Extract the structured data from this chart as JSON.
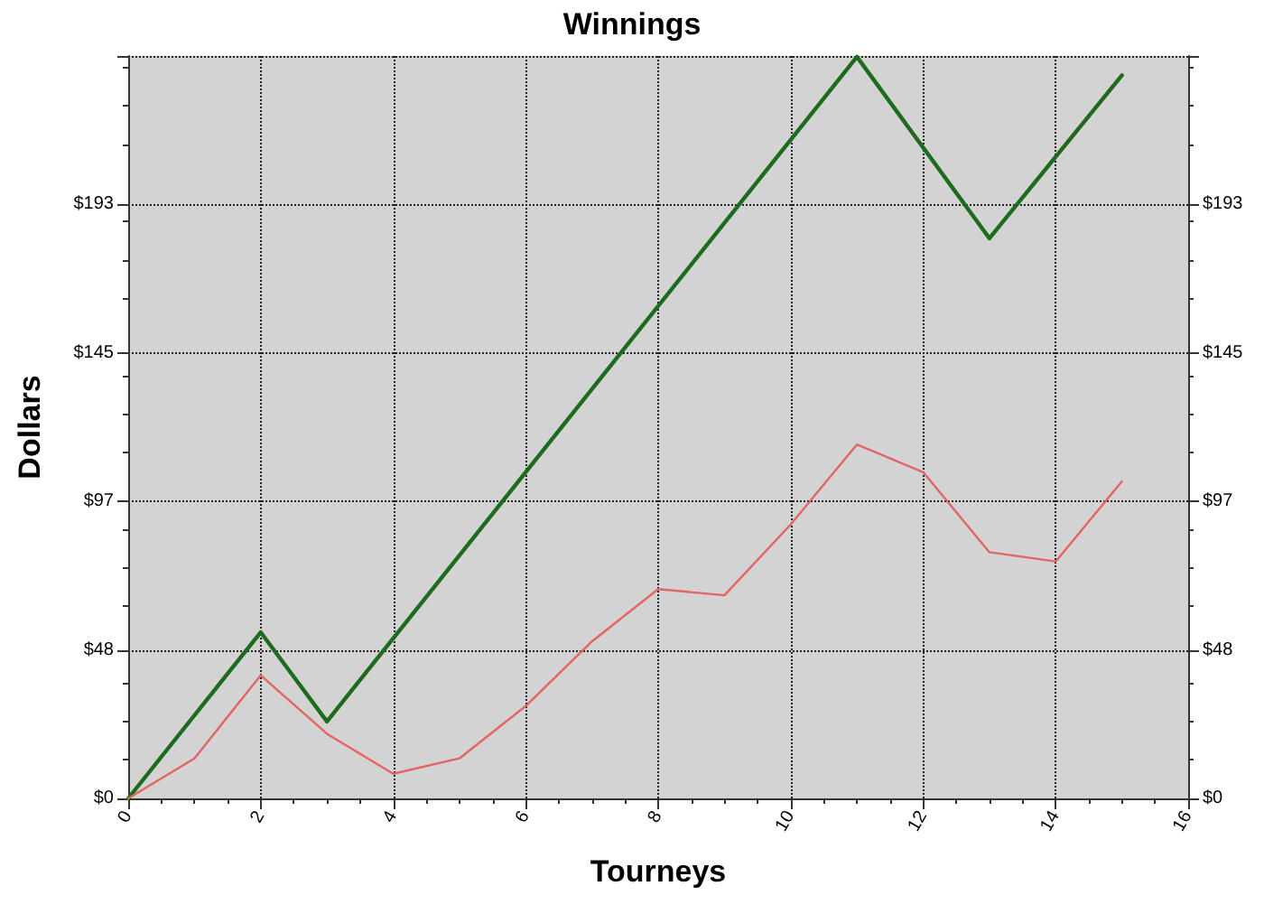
{
  "chart_data": {
    "type": "line",
    "title": "Winnings",
    "xlabel": "Tourneys",
    "ylabel": "Dollars",
    "xlim": [
      0,
      16
    ],
    "xticks": [
      0,
      2,
      4,
      6,
      8,
      10,
      12,
      14,
      16
    ],
    "ylim": [
      0,
      241.25
    ],
    "yticks": [
      {
        "value": 0,
        "label": "$0"
      },
      {
        "value": 48.25,
        "label": "$48"
      },
      {
        "value": 96.5,
        "label": "$97"
      },
      {
        "value": 144.75,
        "label": "$145"
      },
      {
        "value": 193,
        "label": "$193"
      },
      {
        "value": 241.25,
        "label": null
      }
    ],
    "y2lim": [
      0,
      241.25
    ],
    "y2ticks": [
      {
        "value": 0,
        "label": "$0"
      },
      {
        "value": 48.25,
        "label": "$48"
      },
      {
        "value": 96.5,
        "label": "$97"
      },
      {
        "value": 144.75,
        "label": "$145"
      },
      {
        "value": 193,
        "label": "$193"
      },
      {
        "value": 241.25,
        "label": null
      }
    ],
    "series": [
      {
        "color": "#1e6b1e",
        "x": [
          0,
          2,
          3,
          11,
          13,
          15
        ],
        "values": [
          0,
          54,
          25,
          241,
          182,
          235
        ]
      },
      {
        "color": "#e36464",
        "x": [
          0,
          1,
          2,
          3,
          4,
          5,
          6,
          7,
          8,
          9,
          10,
          11,
          12,
          13,
          14,
          15
        ],
        "values": [
          0,
          13,
          40,
          21,
          8,
          13,
          30,
          51,
          68,
          66,
          89,
          115,
          106,
          80,
          77,
          103
        ]
      }
    ],
    "grid": true,
    "marker": "none",
    "line_style": "solid"
  }
}
